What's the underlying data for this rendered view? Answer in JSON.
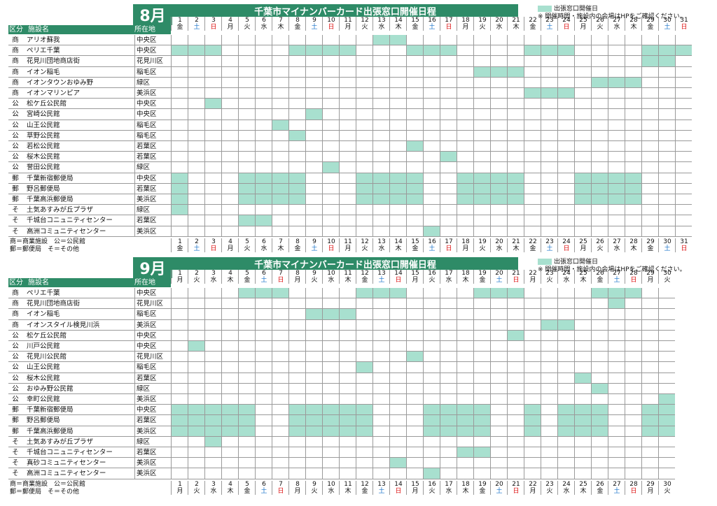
{
  "title": "千葉市マイナンバーカード出張窓口開催日程",
  "legend": {
    "label": "出張窓口開催日",
    "note": "※ 開催時間・施設内の会場はHPをご確認ください。"
  },
  "columns": {
    "cat": "区分",
    "name": "施設名",
    "ward": "所在地"
  },
  "footnote": {
    "line1": "商＝商業施設　公＝公民館",
    "line2": "郵＝郵便局　そ＝その他"
  },
  "colors": {
    "header": "#2e8b67",
    "open": "#a8e0cf",
    "sat": "#1a73c8",
    "sun": "#d11"
  },
  "months": [
    {
      "label": "8月",
      "days": 31,
      "weekdays": [
        "金",
        "土",
        "日",
        "月",
        "火",
        "水",
        "木",
        "金",
        "土",
        "日",
        "月",
        "火",
        "水",
        "木",
        "金",
        "土",
        "日",
        "月",
        "火",
        "水",
        "木",
        "金",
        "土",
        "日",
        "月",
        "火",
        "水",
        "木",
        "金",
        "土",
        "日"
      ],
      "rows": [
        {
          "cat": "商",
          "name": "アリオ蘇我",
          "ward": "中央区",
          "open": [
            13,
            14
          ]
        },
        {
          "cat": "商",
          "name": "ペリエ千葉",
          "ward": "中央区",
          "open": [
            1,
            2,
            3,
            8,
            9,
            10,
            11,
            15,
            16,
            17,
            22,
            23,
            24,
            29,
            30,
            31
          ]
        },
        {
          "cat": "商",
          "name": "花見川団地商店街",
          "ward": "花見川区",
          "open": [
            29,
            30
          ]
        },
        {
          "cat": "商",
          "name": "イオン稲毛",
          "ward": "稲毛区",
          "open": [
            19,
            20,
            21
          ]
        },
        {
          "cat": "商",
          "name": "イオンタウンおゆみ野",
          "ward": "緑区",
          "open": [
            26,
            27,
            28
          ]
        },
        {
          "cat": "商",
          "name": "イオンマリンピア",
          "ward": "美浜区",
          "open": [
            22,
            23,
            24
          ]
        },
        {
          "cat": "公",
          "name": "松ケ丘公民館",
          "ward": "中央区",
          "open": [
            3
          ]
        },
        {
          "cat": "公",
          "name": "宮崎公民館",
          "ward": "中央区",
          "open": [
            9
          ]
        },
        {
          "cat": "公",
          "name": "山王公民館",
          "ward": "稲毛区",
          "open": [
            7
          ]
        },
        {
          "cat": "公",
          "name": "草野公民館",
          "ward": "稲毛区",
          "open": [
            8
          ]
        },
        {
          "cat": "公",
          "name": "若松公民館",
          "ward": "若葉区",
          "open": [
            15
          ]
        },
        {
          "cat": "公",
          "name": "桜木公民館",
          "ward": "若葉区",
          "open": [
            17
          ]
        },
        {
          "cat": "公",
          "name": "誉田公民館",
          "ward": "緑区",
          "open": [
            10
          ]
        },
        {
          "cat": "郵",
          "name": "千葉新宿郵便局",
          "ward": "中央区",
          "open": [
            1,
            5,
            6,
            7,
            8,
            12,
            13,
            14,
            15,
            18,
            19,
            20,
            21,
            25,
            26,
            27,
            28
          ]
        },
        {
          "cat": "郵",
          "name": "野呂郵便局",
          "ward": "若葉区",
          "open": [
            1,
            5,
            6,
            7,
            8,
            12,
            13,
            14,
            15,
            18,
            19,
            20,
            21,
            25,
            26,
            27,
            28
          ]
        },
        {
          "cat": "郵",
          "name": "千葉高浜郵便局",
          "ward": "美浜区",
          "open": [
            1,
            5,
            6,
            7,
            8,
            12,
            13,
            14,
            15,
            18,
            19,
            20,
            21,
            25,
            26,
            27,
            28
          ]
        },
        {
          "cat": "そ",
          "name": "土気あすみが丘プラザ",
          "ward": "緑区",
          "open": [
            1
          ]
        },
        {
          "cat": "そ",
          "name": "千城台コニュニティセンター",
          "ward": "若葉区",
          "open": [
            5,
            6
          ]
        },
        {
          "cat": "そ",
          "name": "高洲コミュニティセンター",
          "ward": "美浜区",
          "open": [
            16
          ]
        }
      ]
    },
    {
      "label": "9月",
      "days": 30,
      "weekdays": [
        "月",
        "火",
        "水",
        "木",
        "金",
        "土",
        "日",
        "月",
        "火",
        "水",
        "木",
        "金",
        "土",
        "日",
        "月",
        "火",
        "水",
        "木",
        "金",
        "土",
        "日",
        "月",
        "火",
        "水",
        "木",
        "金",
        "土",
        "日",
        "月",
        "火"
      ],
      "rows": [
        {
          "cat": "商",
          "name": "ペリエ千葉",
          "ward": "中央区",
          "open": [
            5,
            6,
            7,
            12,
            13,
            14,
            19,
            20,
            21,
            26,
            27,
            28
          ]
        },
        {
          "cat": "商",
          "name": "花見川団地商店街",
          "ward": "花見川区",
          "open": [
            27
          ]
        },
        {
          "cat": "商",
          "name": "イオン稲毛",
          "ward": "稲毛区",
          "open": [
            9,
            10,
            11
          ]
        },
        {
          "cat": "商",
          "name": "イオンスタイル検見川浜",
          "ward": "美浜区",
          "open": [
            23,
            24
          ]
        },
        {
          "cat": "公",
          "name": "松ケ丘公民館",
          "ward": "中央区",
          "open": [
            21
          ]
        },
        {
          "cat": "公",
          "name": "川戸公民館",
          "ward": "中央区",
          "open": [
            2
          ]
        },
        {
          "cat": "公",
          "name": "花見川公民館",
          "ward": "花見川区",
          "open": [
            15
          ]
        },
        {
          "cat": "公",
          "name": "山王公民館",
          "ward": "稲毛区",
          "open": [
            12
          ]
        },
        {
          "cat": "公",
          "name": "桜木公民館",
          "ward": "若葉区",
          "open": [
            25
          ]
        },
        {
          "cat": "公",
          "name": "おゆみ野公民館",
          "ward": "緑区",
          "open": [
            26
          ]
        },
        {
          "cat": "公",
          "name": "幸町公民館",
          "ward": "美浜区",
          "open": [
            30
          ]
        },
        {
          "cat": "郵",
          "name": "千葉新宿郵便局",
          "ward": "中央区",
          "open": [
            1,
            2,
            3,
            4,
            5,
            8,
            9,
            10,
            11,
            12,
            16,
            17,
            18,
            19,
            22,
            24,
            25,
            26,
            29,
            30
          ]
        },
        {
          "cat": "郵",
          "name": "野呂郵便局",
          "ward": "若葉区",
          "open": [
            1,
            2,
            3,
            4,
            5,
            8,
            9,
            10,
            11,
            12,
            16,
            17,
            18,
            19,
            22,
            24,
            25,
            26,
            29,
            30
          ]
        },
        {
          "cat": "郵",
          "name": "千葉高浜郵便局",
          "ward": "美浜区",
          "open": [
            1,
            2,
            3,
            4,
            5,
            8,
            9,
            10,
            11,
            12,
            16,
            17,
            18,
            19,
            22,
            24,
            25,
            26,
            29,
            30
          ]
        },
        {
          "cat": "そ",
          "name": "土気あすみが丘プラザ",
          "ward": "緑区",
          "open": [
            3
          ]
        },
        {
          "cat": "そ",
          "name": "千城台コニュニティセンター",
          "ward": "若葉区",
          "open": [
            18,
            19
          ]
        },
        {
          "cat": "そ",
          "name": "真砂コミュニティセンター",
          "ward": "美浜区",
          "open": [
            14
          ]
        },
        {
          "cat": "そ",
          "name": "高洲コミュニティセンター",
          "ward": "美浜区",
          "open": [
            16
          ]
        }
      ]
    }
  ]
}
